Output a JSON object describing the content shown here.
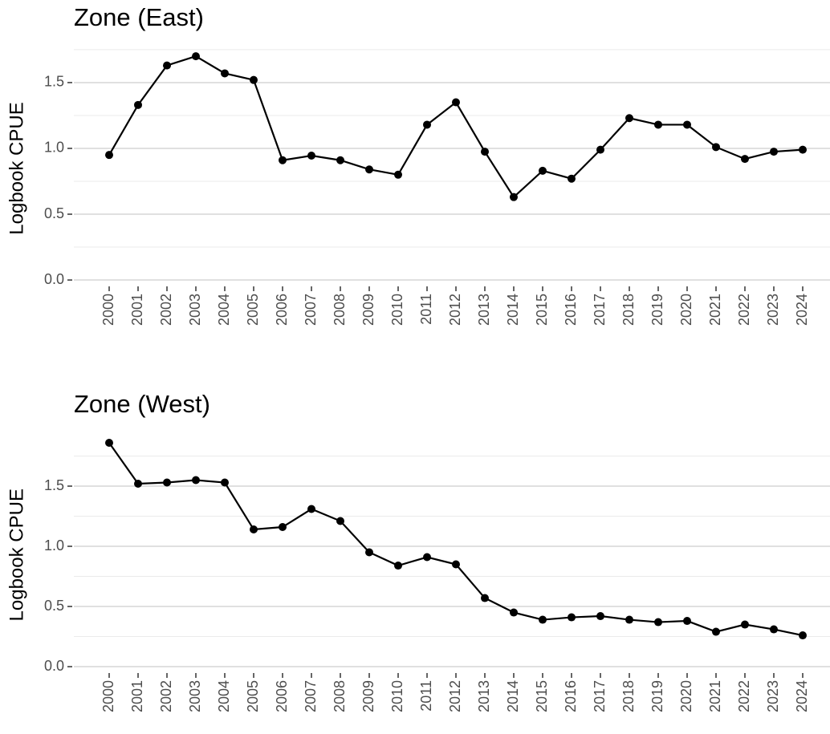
{
  "chart_data": [
    {
      "type": "line",
      "title": "Zone (East)",
      "y_label": "Logbook CPUE",
      "categories": [
        "2000",
        "2001",
        "2002",
        "2003",
        "2004",
        "2005",
        "2006",
        "2007",
        "2008",
        "2009",
        "2010",
        "2011",
        "2012",
        "2013",
        "2014",
        "2015",
        "2016",
        "2017",
        "2018",
        "2019",
        "2020",
        "2021",
        "2022",
        "2023",
        "2024"
      ],
      "values": [
        0.95,
        1.33,
        1.63,
        1.7,
        1.57,
        1.52,
        0.91,
        0.945,
        0.91,
        0.84,
        0.8,
        1.18,
        1.35,
        0.975,
        0.63,
        0.83,
        0.77,
        0.99,
        1.23,
        1.18,
        1.18,
        1.01,
        0.92,
        0.975,
        0.99
      ],
      "color": "#000000",
      "ylim": [
        -0.085,
        1.78
      ],
      "yticks": [
        {
          "value": 0,
          "label": "0.0"
        },
        0.5,
        {
          "value": 1,
          "label": "1.0"
        },
        1.5
      ],
      "grid": true
    },
    {
      "type": "line",
      "title": "Zone (West)",
      "y_label": "Logbook CPUE",
      "categories": [
        "2000",
        "2001",
        "2002",
        "2003",
        "2004",
        "2005",
        "2006",
        "2007",
        "2008",
        "2009",
        "2010",
        "2011",
        "2012",
        "2013",
        "2014",
        "2015",
        "2016",
        "2017",
        "2018",
        "2019",
        "2020",
        "2021",
        "2022",
        "2023",
        "2024"
      ],
      "values": [
        1.86,
        1.52,
        1.53,
        1.55,
        1.53,
        1.14,
        1.16,
        1.31,
        1.21,
        0.95,
        0.84,
        0.91,
        0.85,
        0.57,
        0.45,
        0.39,
        0.41,
        0.42,
        0.39,
        0.37,
        0.38,
        0.29,
        0.35,
        0.31,
        0.26
      ],
      "color": "#000000",
      "ylim": [
        -0.093,
        1.95
      ],
      "yticks": [
        {
          "value": 0,
          "label": "0.0"
        },
        0.5,
        {
          "value": 1,
          "label": "1.0"
        },
        1.5
      ],
      "grid": true
    }
  ]
}
